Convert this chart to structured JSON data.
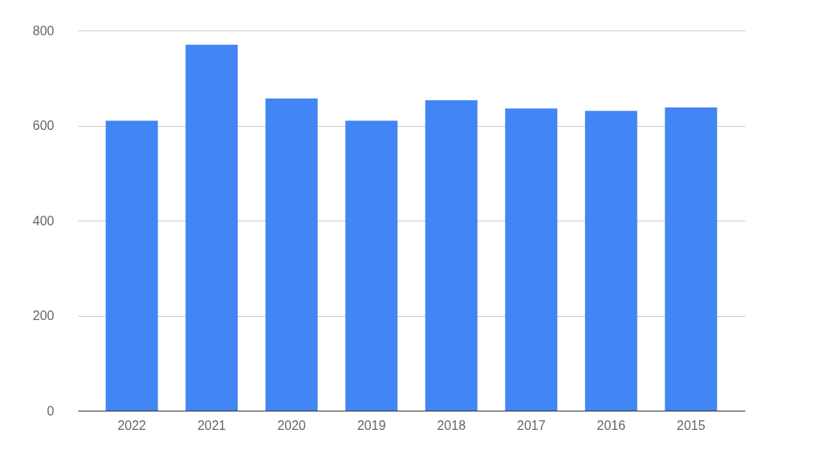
{
  "chart_data": {
    "type": "bar",
    "categories": [
      "2022",
      "2021",
      "2020",
      "2019",
      "2018",
      "2017",
      "2016",
      "2015"
    ],
    "values": [
      610,
      770,
      657,
      610,
      653,
      636,
      631,
      638
    ],
    "color": "#4285f4",
    "ylim": [
      0,
      800
    ],
    "yticks": [
      0,
      200,
      400,
      600,
      800
    ],
    "grid": "y"
  }
}
